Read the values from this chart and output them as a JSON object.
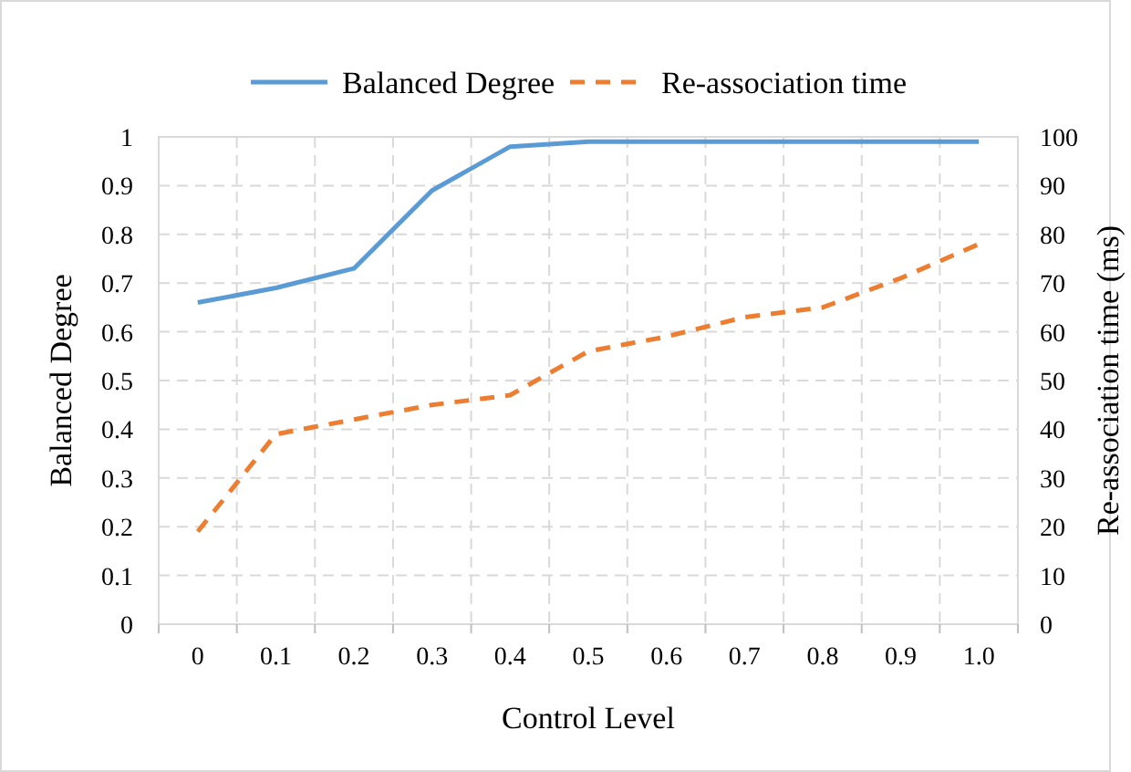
{
  "chart_data": {
    "type": "line",
    "xlabel": "Control Level",
    "ylabel": "Balanced Degree",
    "y2label": "Re-association time (ms)",
    "categories": [
      "0",
      "0.1",
      "0.2",
      "0.3",
      "0.4",
      "0.5",
      "0.6",
      "0.7",
      "0.8",
      "0.9",
      "1.0"
    ],
    "series": [
      {
        "name": "Balanced Degree",
        "color": "#5b9bd5",
        "line_style": "solid",
        "values": [
          0.66,
          0.69,
          0.73,
          0.89,
          0.98,
          0.99,
          0.99,
          0.99,
          0.99,
          0.99,
          0.99
        ]
      },
      {
        "name": "Re-association time",
        "color": "#ed7d31",
        "line_style": "dashed",
        "axis": "y2",
        "values": [
          19,
          39,
          42,
          45,
          47,
          56,
          59,
          63,
          65,
          71,
          78
        ]
      }
    ],
    "ylim": [
      0,
      1
    ],
    "yticks": [
      0,
      0.1,
      0.2,
      0.3,
      0.4,
      0.5,
      0.6,
      0.7,
      0.8,
      0.9,
      1
    ],
    "y2lim": [
      0,
      100
    ],
    "y2ticks": [
      0,
      10,
      20,
      30,
      40,
      50,
      60,
      70,
      80,
      90,
      100
    ],
    "grid": true,
    "legend": "top",
    "marker": "none"
  }
}
